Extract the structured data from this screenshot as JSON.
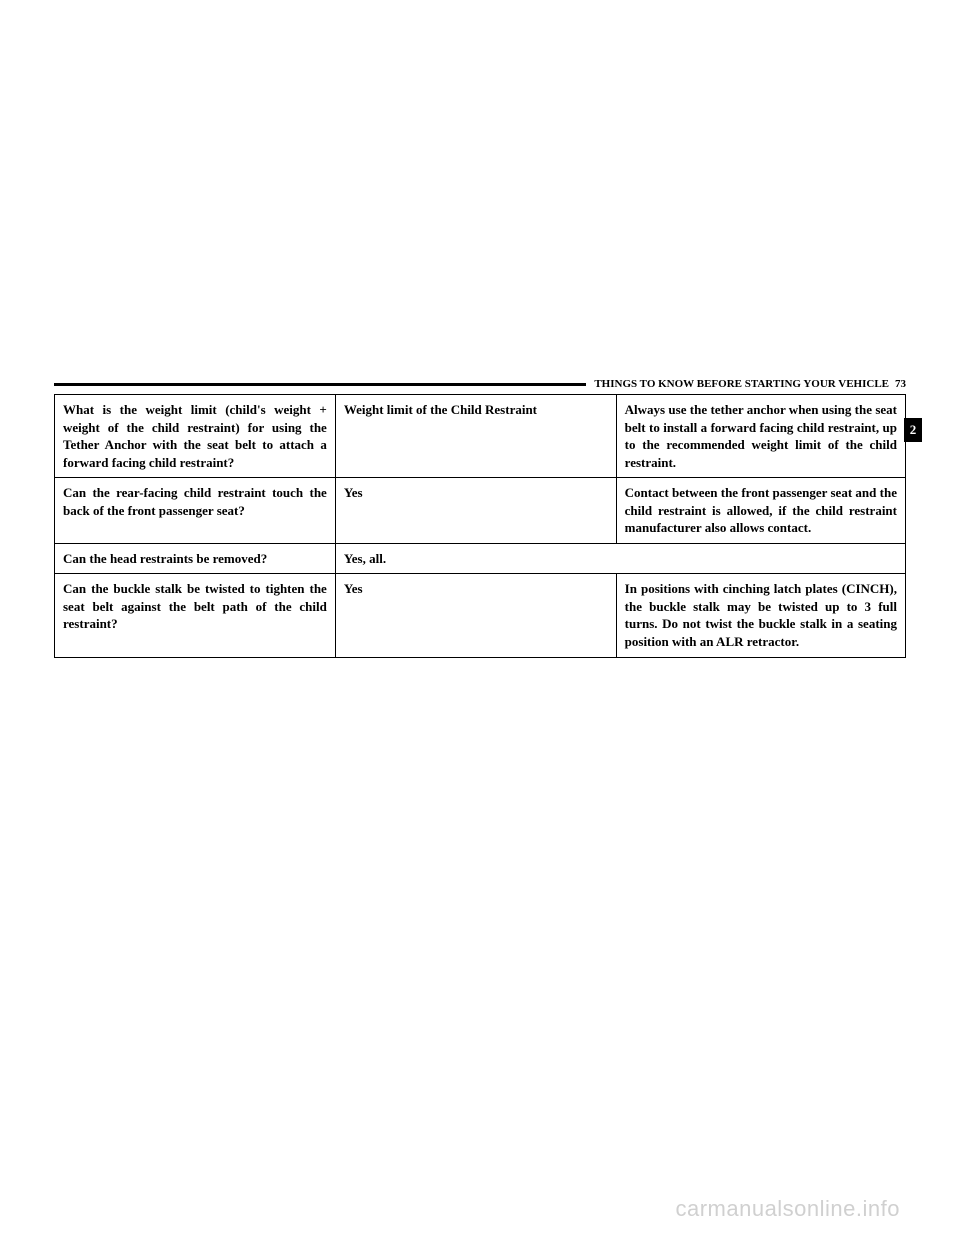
{
  "header": {
    "section_title": "THINGS TO KNOW BEFORE STARTING YOUR VEHICLE",
    "page_number": "73",
    "section_tab": "2"
  },
  "table": {
    "rows": [
      {
        "question": "What is the weight limit (child's weight + weight of the child restraint) for using the Tether Anchor with the seat belt to attach a forward facing child restraint?",
        "answer": "Weight limit of the Child Restraint",
        "note": "Always use the tether anchor when using the seat belt to install a forward facing child restraint, up to the recommended weight limit of the child restraint."
      },
      {
        "question": "Can the rear-facing child restraint touch the back of the front passenger seat?",
        "answer": "Yes",
        "note": "Contact between the front passenger seat and the child restraint is allowed, if the child restraint manufacturer also allows contact."
      },
      {
        "question": "Can the head restraints be removed?",
        "answer": "Yes, all.",
        "note": ""
      },
      {
        "question": "Can the buckle stalk be twisted to tighten the seat belt against the belt path of the child restraint?",
        "answer": "Yes",
        "note": "In positions with cinching latch plates (CINCH), the buckle stalk may be twisted up to 3 full turns. Do not twist the buckle stalk in a seating position with an ALR retractor."
      }
    ]
  },
  "watermark": "carmanualsonline.info"
}
